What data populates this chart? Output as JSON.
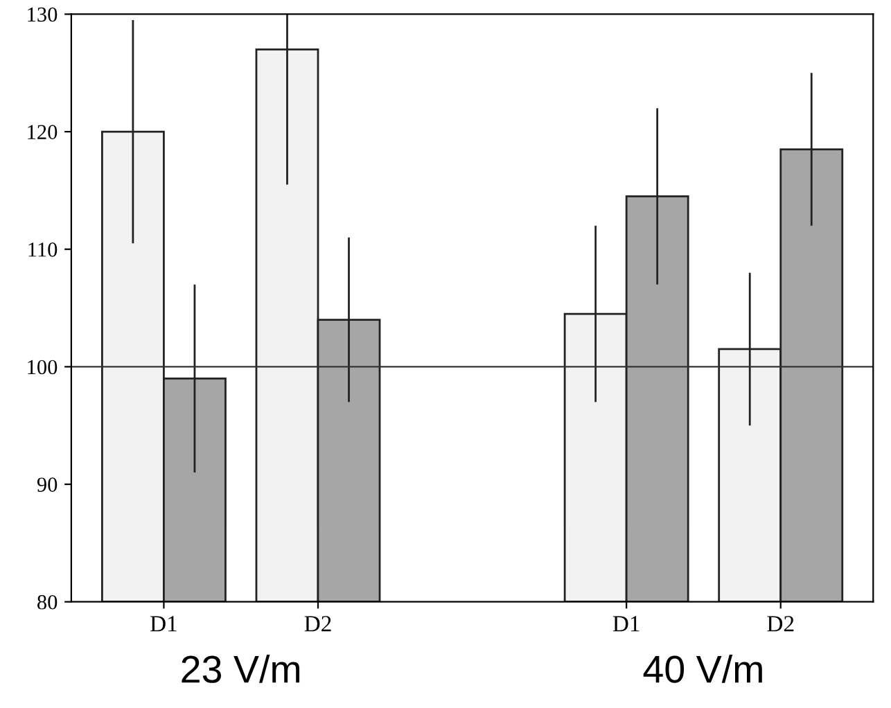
{
  "chart_data": {
    "type": "bar",
    "categories": [
      "D1",
      "D2",
      null,
      "D1",
      "D2"
    ],
    "series": [
      {
        "color": "#f2f2f2",
        "values": [
          120,
          127,
          null,
          104.5,
          101.5
        ],
        "errors": [
          9.5,
          [
            115.5,
            130
          ],
          null,
          7.5,
          6.5
        ]
      },
      {
        "color": "#a6a6a6",
        "values": [
          99,
          104,
          null,
          114.5,
          118.5
        ],
        "errors": [
          8,
          7,
          null,
          7.5,
          6.5
        ]
      }
    ],
    "ylim": [
      80,
      130
    ],
    "yticks": [
      80,
      90,
      100,
      110,
      120,
      130
    ],
    "ref_lines": [
      {
        "axis": "y",
        "value": 100,
        "color": "#333333"
      }
    ],
    "annotations": [
      "23 V/m",
      "40 V/m"
    ],
    "grid": false,
    "legend": false
  }
}
